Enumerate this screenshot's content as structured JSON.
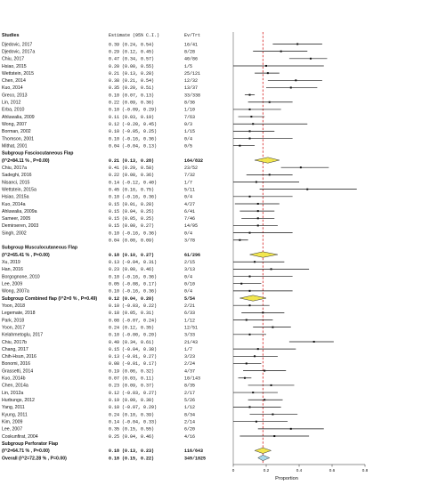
{
  "chart_data": {
    "type": "forest",
    "headers": {
      "studies": "Studies",
      "estimate": "Estimate (95% C.I.)",
      "counts": "Ev/Trt"
    },
    "xlabel": "Proportion",
    "xlim": [
      0,
      0.8
    ],
    "xticks": [
      "0",
      "0.2",
      "0.4",
      "0.6",
      "0.8"
    ],
    "reference_line": 0.18,
    "rows": [
      {
        "kind": "study",
        "label": "Djedovic, 2017",
        "est": 0.39,
        "lo": 0.24,
        "hi": 0.54,
        "text": "0.39  (0.24, 0.54)",
        "counts": "16/41"
      },
      {
        "kind": "study",
        "label": "Djedovic, 2017a",
        "est": 0.29,
        "lo": 0.12,
        "hi": 0.45,
        "text": "0.29  (0.12, 0.45)",
        "counts": "8/28"
      },
      {
        "kind": "study",
        "label": "Chiu, 2017",
        "est": 0.47,
        "lo": 0.34,
        "hi": 0.57,
        "text": "0.47  (0.34, 0.57)",
        "counts": "40/86"
      },
      {
        "kind": "study",
        "label": "Hsiao, 2015",
        "est": 0.2,
        "lo": 0.0,
        "hi": 0.55,
        "text": "0.20  (0.00, 0.55)",
        "counts": "1/5"
      },
      {
        "kind": "study",
        "label": "Wettstein, 2015",
        "est": 0.21,
        "lo": 0.13,
        "hi": 0.28,
        "text": "0.21  (0.13, 0.28)",
        "counts": "25/121"
      },
      {
        "kind": "study",
        "label": "Chen, 2014",
        "est": 0.38,
        "lo": 0.21,
        "hi": 0.54,
        "text": "0.38  (0.21, 0.54)",
        "counts": "12/32"
      },
      {
        "kind": "study",
        "label": "Kuo, 2014",
        "est": 0.35,
        "lo": 0.2,
        "hi": 0.51,
        "text": "0.35  (0.20, 0.51)",
        "counts": "13/37"
      },
      {
        "kind": "study",
        "label": "Greco, 2013",
        "est": 0.1,
        "lo": 0.07,
        "hi": 0.13,
        "text": "0.10  (0.07, 0.13)",
        "counts": "33/338"
      },
      {
        "kind": "study",
        "label": "Lin, 2012",
        "est": 0.22,
        "lo": 0.09,
        "hi": 0.36,
        "text": "0.22  (0.09, 0.36)",
        "counts": "8/36"
      },
      {
        "kind": "study",
        "label": "Erba, 2010",
        "est": 0.1,
        "lo": -0.09,
        "hi": 0.29,
        "text": "0.10  (-0.09, 0.29)",
        "counts": "1/10"
      },
      {
        "kind": "study",
        "label": "Ahluwalia, 2009",
        "est": 0.11,
        "lo": 0.03,
        "hi": 0.19,
        "text": "0.11  (0.03, 0.19)",
        "counts": "7/63"
      },
      {
        "kind": "study",
        "label": "Wong, 2007",
        "est": 0.12,
        "lo": -0.2,
        "hi": 0.45,
        "text": "0.12  (-0.20, 0.45)",
        "counts": "0/3"
      },
      {
        "kind": "study",
        "label": "Borman, 2002",
        "est": 0.1,
        "lo": -0.05,
        "hi": 0.25,
        "text": "0.10  (-0.05, 0.25)",
        "counts": "1/15"
      },
      {
        "kind": "study",
        "label": "Thomson, 2001",
        "est": 0.1,
        "lo": -0.16,
        "hi": 0.36,
        "text": "0.10  (-0.16, 0.36)",
        "counts": "0/4"
      },
      {
        "kind": "study",
        "label": "Mithat, 2001",
        "est": 0.04,
        "lo": -0.04,
        "hi": 0.13,
        "text": "0.04  (-0.04, 0.13)",
        "counts": "0/5"
      },
      {
        "kind": "subtitle",
        "label": "Subgroup Fasciocutaneous Flap"
      },
      {
        "kind": "summary",
        "label": "(I^2=84.11 % , P=0.00)",
        "est": 0.21,
        "lo": 0.13,
        "hi": 0.28,
        "text": "0.21  (0.13, 0.28)",
        "counts": "164/832"
      },
      {
        "kind": "study",
        "label": "Chiu, 2017a",
        "est": 0.41,
        "lo": 0.29,
        "hi": 0.58,
        "text": "0.41  (0.29, 0.58)",
        "counts": "23/52"
      },
      {
        "kind": "study",
        "label": "Sadeghi, 2016",
        "est": 0.22,
        "lo": 0.08,
        "hi": 0.36,
        "text": "0.22  (0.08, 0.36)",
        "counts": "7/32"
      },
      {
        "kind": "study",
        "label": "Nisanci, 2015",
        "est": 0.14,
        "lo": -0.12,
        "hi": 0.4,
        "text": "0.14  (-0.12, 0.40)",
        "counts": "1/7"
      },
      {
        "kind": "study",
        "label": "Wettstein, 2015a",
        "est": 0.45,
        "lo": 0.16,
        "hi": 0.75,
        "text": "0.45  (0.16, 0.75)",
        "counts": "5/11"
      },
      {
        "kind": "study",
        "label": "Hsiao, 2015a",
        "est": 0.1,
        "lo": -0.16,
        "hi": 0.36,
        "text": "0.10  (-0.16, 0.36)",
        "counts": "0/4"
      },
      {
        "kind": "study",
        "label": "Kuo, 2014a",
        "est": 0.15,
        "lo": 0.01,
        "hi": 0.28,
        "text": "0.15  (0.01, 0.28)",
        "counts": "4/27"
      },
      {
        "kind": "study",
        "label": "Ahluwalia, 2009a",
        "est": 0.15,
        "lo": 0.04,
        "hi": 0.25,
        "text": "0.15  (0.04, 0.25)",
        "counts": "6/41"
      },
      {
        "kind": "study",
        "label": "Sameer, 2005",
        "est": 0.15,
        "lo": 0.05,
        "hi": 0.25,
        "text": "0.15  (0.05, 0.25)",
        "counts": "7/46"
      },
      {
        "kind": "study",
        "label": "Demirseren, 2003",
        "est": 0.15,
        "lo": 0.0,
        "hi": 0.27,
        "text": "0.15  (0.00, 0.27)",
        "counts": "14/95"
      },
      {
        "kind": "study",
        "label": "Singh, 2002",
        "est": 0.1,
        "lo": -0.16,
        "hi": 0.36,
        "text": "0.10  (-0.16, 0.36)",
        "counts": "0/4"
      },
      {
        "kind": "study",
        "label": "",
        "est": 0.04,
        "lo": 0.0,
        "hi": 0.09,
        "text": "0.04  (0.00, 0.09)",
        "counts": "3/78"
      },
      {
        "kind": "subtitle",
        "label": "Subgroup Musculocutaneous Flap"
      },
      {
        "kind": "summary",
        "label": "(I^2=65.41 % , P=0.00)",
        "est": 0.18,
        "lo": 0.1,
        "hi": 0.27,
        "text": "0.18  (0.10, 0.27)",
        "counts": "61/296"
      },
      {
        "kind": "study",
        "label": "Xu, 2019",
        "est": 0.13,
        "lo": -0.04,
        "hi": 0.31,
        "text": "0.13  (-0.04, 0.31)",
        "counts": "2/15"
      },
      {
        "kind": "study",
        "label": "Han, 2016",
        "est": 0.23,
        "lo": 0.0,
        "hi": 0.46,
        "text": "0.23  (0.00, 0.46)",
        "counts": "3/13"
      },
      {
        "kind": "study",
        "label": "Borgognone, 2010",
        "est": 0.1,
        "lo": -0.16,
        "hi": 0.36,
        "text": "0.10  (-0.16, 0.36)",
        "counts": "0/4"
      },
      {
        "kind": "study",
        "label": "Lee, 2009",
        "est": 0.05,
        "lo": -0.08,
        "hi": 0.17,
        "text": "0.05  (-0.08, 0.17)",
        "counts": "0/10"
      },
      {
        "kind": "study",
        "label": "Wong, 2007a",
        "est": 0.1,
        "lo": -0.16,
        "hi": 0.36,
        "text": "0.10  (-0.16, 0.36)",
        "counts": "0/4"
      },
      {
        "kind": "summary",
        "label": "Subgroup Combined flap (I^2=0 % , P=0.49)",
        "est": 0.12,
        "lo": 0.04,
        "hi": 0.2,
        "text": "0.12  (0.04, 0.20)",
        "counts": "5/54"
      },
      {
        "kind": "study",
        "label": "Yoon, 2018",
        "est": 0.1,
        "lo": -0.03,
        "hi": 0.22,
        "text": "0.10  (-0.03, 0.22)",
        "counts": "2/21"
      },
      {
        "kind": "study",
        "label": "Legemate, 2018",
        "est": 0.18,
        "lo": 0.05,
        "hi": 0.31,
        "text": "0.18  (0.05, 0.31)",
        "counts": "6/33"
      },
      {
        "kind": "study",
        "label": "Park, 2018",
        "est": 0.08,
        "lo": -0.07,
        "hi": 0.24,
        "text": "0.08  (-0.07, 0.24)",
        "counts": "1/12"
      },
      {
        "kind": "study",
        "label": "Yoon, 2017",
        "est": 0.24,
        "lo": 0.12,
        "hi": 0.35,
        "text": "0.24  (0.12, 0.35)",
        "counts": "12/51"
      },
      {
        "kind": "study",
        "label": "Kelahmetoglu, 2017",
        "est": 0.1,
        "lo": -0.0,
        "hi": 0.2,
        "text": "0.10  (-0.00, 0.20)",
        "counts": "3/33"
      },
      {
        "kind": "study",
        "label": "Chiu, 2017b",
        "est": 0.49,
        "lo": 0.34,
        "hi": 0.61,
        "text": "0.49  (0.34, 0.61)",
        "counts": "21/43"
      },
      {
        "kind": "study",
        "label": "Chang, 2017",
        "est": 0.15,
        "lo": -0.04,
        "hi": 0.38,
        "text": "0.15  (-0.04, 0.38)",
        "counts": "1/7"
      },
      {
        "kind": "study",
        "label": "Chih-Hsun, 2016",
        "est": 0.13,
        "lo": -0.01,
        "hi": 0.27,
        "text": "0.13  (-0.01, 0.27)",
        "counts": "3/23"
      },
      {
        "kind": "study",
        "label": "Bonomi, 2016",
        "est": 0.08,
        "lo": -0.01,
        "hi": 0.17,
        "text": "0.08  (-0.01, 0.17)",
        "counts": "2/24"
      },
      {
        "kind": "study",
        "label": "Grassetti, 2014",
        "est": 0.19,
        "lo": 0.06,
        "hi": 0.32,
        "text": "0.19  (0.06, 0.32)",
        "counts": "4/37"
      },
      {
        "kind": "study",
        "label": "Kuo, 2014b",
        "est": 0.07,
        "lo": 0.03,
        "hi": 0.11,
        "text": "0.07  (0.03, 0.11)",
        "counts": "10/143"
      },
      {
        "kind": "study",
        "label": "Chen, 2014a",
        "est": 0.23,
        "lo": 0.09,
        "hi": 0.37,
        "text": "0.23  (0.09, 0.37)",
        "counts": "8/35"
      },
      {
        "kind": "study",
        "label": "Lin, 2012a",
        "est": 0.12,
        "lo": -0.03,
        "hi": 0.27,
        "text": "0.12  (-0.03, 0.27)",
        "counts": "2/17"
      },
      {
        "kind": "study",
        "label": "Hurbungs, 2012",
        "est": 0.19,
        "lo": 0.09,
        "hi": 0.3,
        "text": "0.19  (0.09, 0.30)",
        "counts": "5/26"
      },
      {
        "kind": "study",
        "label": "Yang, 2011",
        "est": 0.1,
        "lo": -0.07,
        "hi": 0.29,
        "text": "0.10  (-0.07, 0.29)",
        "counts": "1/12"
      },
      {
        "kind": "study",
        "label": "Kyung, 2011",
        "est": 0.24,
        "lo": 0.1,
        "hi": 0.39,
        "text": "0.24  (0.10, 0.39)",
        "counts": "8/34"
      },
      {
        "kind": "study",
        "label": "Kim, 2009",
        "est": 0.14,
        "lo": -0.04,
        "hi": 0.33,
        "text": "0.14  (-0.04, 0.33)",
        "counts": "2/14"
      },
      {
        "kind": "study",
        "label": "Lee, 2007",
        "est": 0.35,
        "lo": 0.15,
        "hi": 0.55,
        "text": "0.35  (0.15, 0.55)",
        "counts": "6/20"
      },
      {
        "kind": "study",
        "label": "Coskunfirat, 2004",
        "est": 0.25,
        "lo": 0.04,
        "hi": 0.46,
        "text": "0.25  (0.04, 0.46)",
        "counts": "4/16"
      },
      {
        "kind": "subtitle",
        "label": "Subgroup Perforator Flap"
      },
      {
        "kind": "summary",
        "label": "(I^2=64.71 % , P=0.00)",
        "est": 0.18,
        "lo": 0.13,
        "hi": 0.23,
        "text": "0.18  (0.13, 0.23)",
        "counts": "116/643"
      },
      {
        "kind": "overall",
        "label": "Overall (I^2=72.28 % , P=0.00)",
        "est": 0.18,
        "lo": 0.15,
        "hi": 0.22,
        "text": "0.18  (0.15, 0.22)",
        "counts": "349/1825"
      }
    ]
  }
}
